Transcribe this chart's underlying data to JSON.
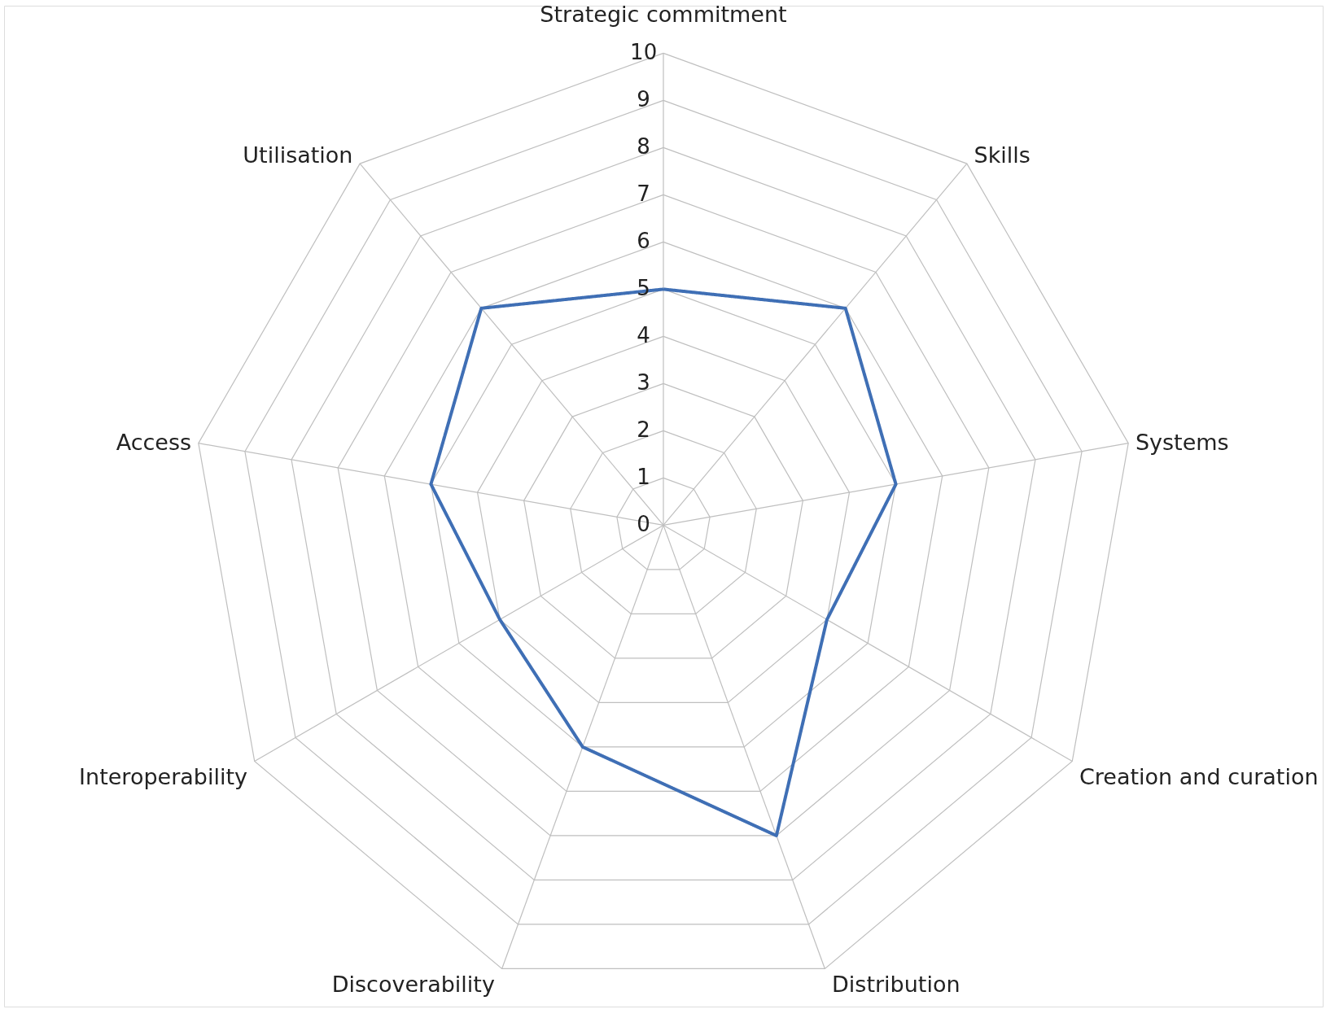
{
  "chart_data": {
    "type": "radar",
    "categories": [
      "Strategic commitment",
      "Skills",
      "Systems",
      "Creation and curation",
      "Distribution",
      "Discoverability",
      "Interoperability",
      "Access",
      "Utilisation"
    ],
    "series": [
      {
        "color": "#3f6fb5",
        "values": [
          5,
          6,
          5,
          4,
          7,
          5,
          4,
          5,
          6
        ]
      }
    ],
    "ylim": [
      0,
      10
    ],
    "yticks": [
      0,
      1,
      2,
      3,
      4,
      5,
      6,
      7,
      8,
      9,
      10
    ],
    "grid": true,
    "marker": "none",
    "line_style": "solid"
  }
}
